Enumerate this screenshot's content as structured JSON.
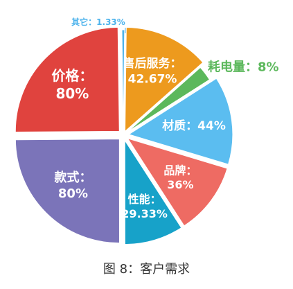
{
  "caption": "图 8：客户需求",
  "chart_data": {
    "type": "pie",
    "slices": [
      {
        "label": "售后服务",
        "value_text": "42.67%",
        "value": 42.67,
        "color": "#ED9A1E"
      },
      {
        "label": "耗电量",
        "value_text": "8%",
        "value": 8,
        "color": "#5CB85C"
      },
      {
        "label": "材质",
        "value_text": "44%",
        "value": 44,
        "color": "#5BBDF0"
      },
      {
        "label": "品牌",
        "value_text": "36%",
        "value": 36,
        "color": "#EE6B63"
      },
      {
        "label": "性能",
        "value_text": "29.33%",
        "value": 29.33,
        "color": "#17A2C9"
      },
      {
        "label": "款式",
        "value_text": "80%",
        "value": 80,
        "color": "#7B74B9"
      },
      {
        "label": "价格",
        "value_text": "80%",
        "value": 80,
        "color": "#E0433E"
      },
      {
        "label": "其它",
        "value_text": "1.33%",
        "value": 1.33,
        "color": "#4DB3EC"
      }
    ]
  }
}
